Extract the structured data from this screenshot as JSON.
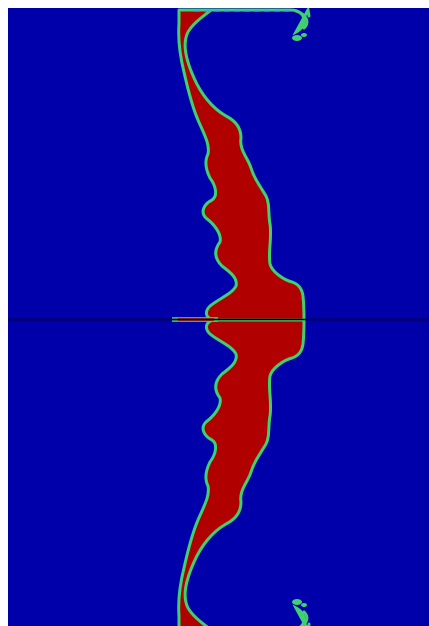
{
  "image": {
    "subject": "mirrored-simulation-field",
    "colors": {
      "background": "#0000aa",
      "fill": "#b00000",
      "edge": "#40d070",
      "edge_outer": "#2bb0d0",
      "divider": "#000000"
    }
  }
}
